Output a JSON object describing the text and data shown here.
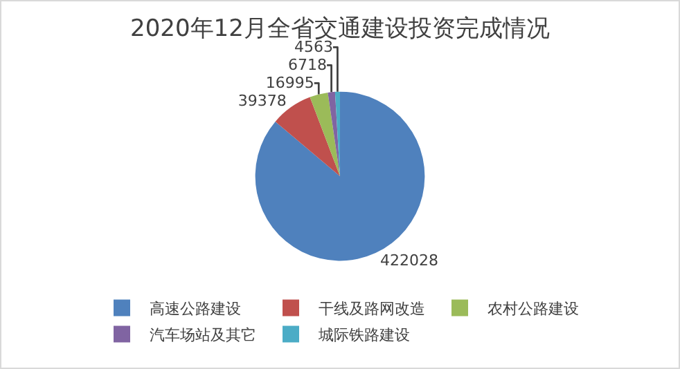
{
  "chart_data": {
    "type": "pie",
    "title": "2020年12月全省交通建设投资完成情况",
    "categories": [
      "高速公路建设",
      "干线及路网改造",
      "农村公路建设",
      "汽车场站及其它",
      "城际铁路建设"
    ],
    "values": [
      422028,
      39378,
      16995,
      6718,
      4563
    ],
    "colors": [
      "#4f81bd",
      "#c0504d",
      "#9bbb59",
      "#8064a2",
      "#4bacc6"
    ],
    "data_labels": true,
    "legend": "bottom"
  }
}
